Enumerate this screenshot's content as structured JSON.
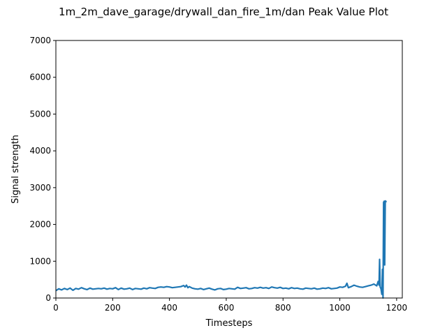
{
  "chart_data": {
    "type": "line",
    "title": "1m_2m_dave_garage/drywall_dan_fire_1m/dan Peak Value Plot",
    "xlabel": "Timesteps",
    "ylabel": "Signal strength",
    "xlim": [
      0,
      1220
    ],
    "ylim": [
      0,
      7000
    ],
    "xticks": [
      0,
      200,
      400,
      600,
      800,
      1000,
      1200
    ],
    "yticks": [
      0,
      1000,
      2000,
      3000,
      4000,
      5000,
      6000,
      7000
    ],
    "grid": false,
    "line_color": "#1f77b4",
    "series": [
      {
        "x": [
          0,
          10,
          20,
          30,
          40,
          50,
          60,
          70,
          80,
          90,
          100,
          110,
          120,
          130,
          140,
          150,
          160,
          170,
          180,
          190,
          200,
          210,
          220,
          230,
          240,
          250,
          260,
          270,
          280,
          290,
          300,
          310,
          320,
          330,
          340,
          350,
          360,
          370,
          380,
          390,
          400,
          410,
          420,
          430,
          440,
          450,
          455,
          460,
          465,
          470,
          480,
          490,
          500,
          510,
          520,
          530,
          540,
          550,
          560,
          570,
          580,
          590,
          600,
          610,
          620,
          630,
          640,
          650,
          660,
          670,
          680,
          690,
          700,
          710,
          720,
          730,
          740,
          750,
          760,
          770,
          780,
          790,
          800,
          810,
          820,
          830,
          840,
          850,
          860,
          870,
          880,
          890,
          900,
          910,
          920,
          930,
          940,
          950,
          960,
          970,
          980,
          990,
          1000,
          1010,
          1020,
          1025,
          1030,
          1040,
          1050,
          1060,
          1070,
          1080,
          1090,
          1100,
          1110,
          1120,
          1130,
          1135,
          1138,
          1140,
          1142,
          1145,
          1148,
          1150,
          1152,
          1154,
          1156,
          1158,
          1160,
          1162,
          1165
        ],
        "y": [
          200,
          250,
          220,
          260,
          230,
          270,
          210,
          260,
          240,
          280,
          250,
          230,
          270,
          240,
          250,
          260,
          250,
          270,
          240,
          260,
          250,
          280,
          230,
          270,
          240,
          250,
          270,
          230,
          260,
          250,
          240,
          270,
          250,
          280,
          270,
          260,
          290,
          300,
          290,
          310,
          300,
          280,
          290,
          300,
          310,
          340,
          300,
          350,
          280,
          310,
          270,
          250,
          240,
          260,
          230,
          250,
          270,
          240,
          220,
          250,
          260,
          230,
          240,
          260,
          250,
          240,
          290,
          260,
          270,
          280,
          250,
          260,
          280,
          270,
          290,
          270,
          280,
          260,
          300,
          280,
          270,
          290,
          260,
          270,
          250,
          280,
          260,
          270,
          250,
          240,
          270,
          260,
          250,
          270,
          240,
          250,
          270,
          260,
          280,
          250,
          260,
          270,
          300,
          290,
          320,
          400,
          280,
          310,
          350,
          320,
          300,
          290,
          310,
          330,
          350,
          380,
          330,
          450,
          350,
          1050,
          300,
          250,
          100,
          780,
          0,
          2600,
          2630,
          900,
          2640,
          2620,
          2630
        ]
      }
    ]
  }
}
